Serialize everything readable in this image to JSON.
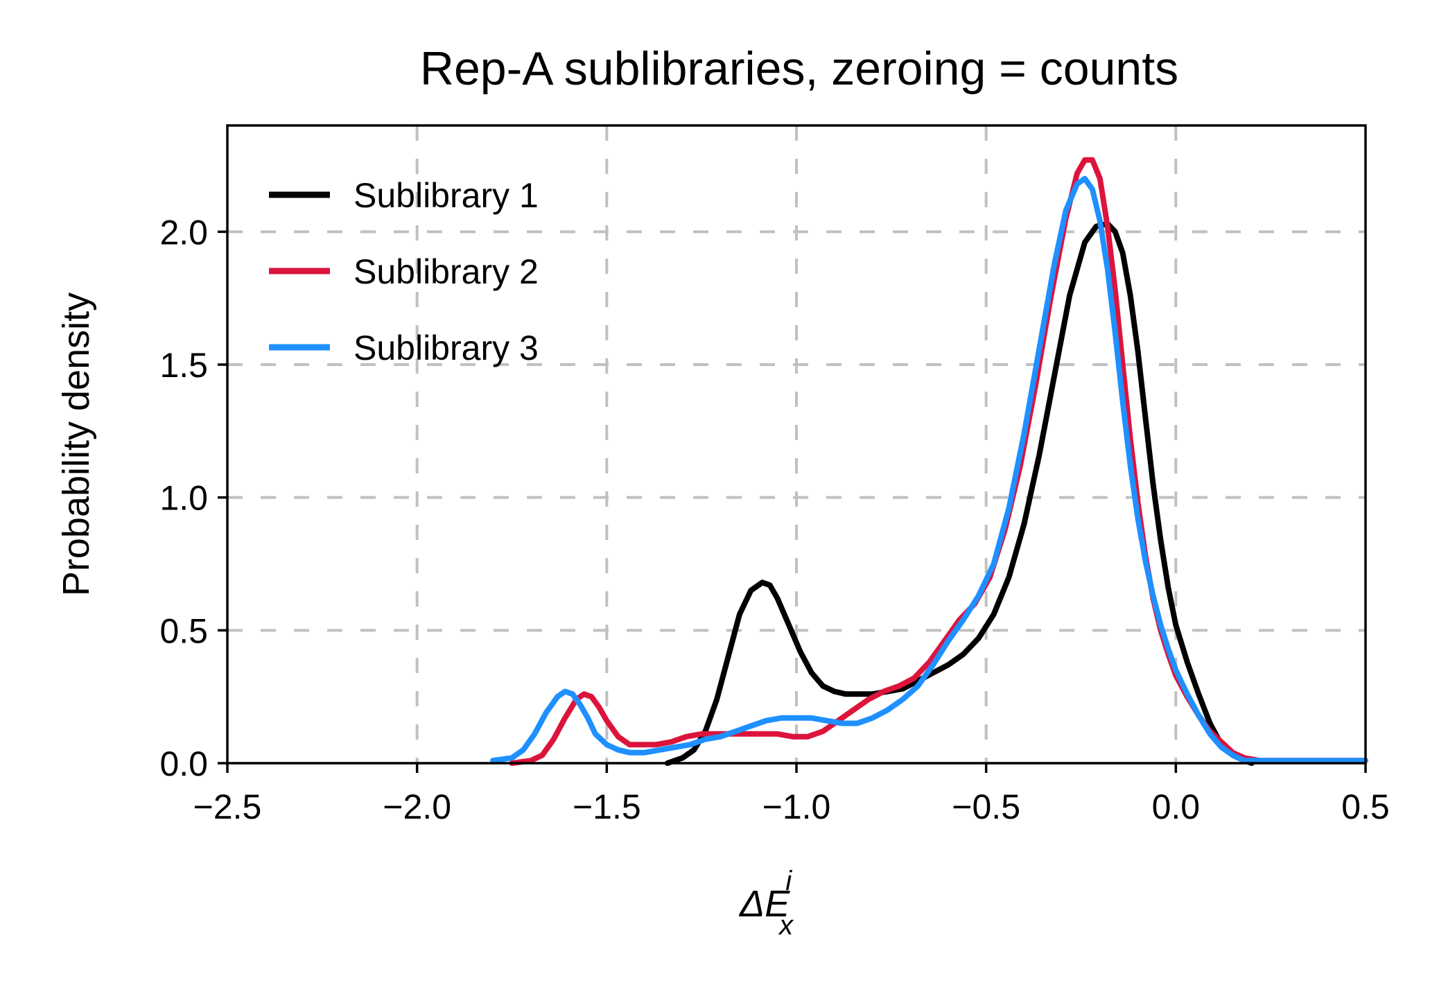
{
  "chart_data": {
    "type": "line",
    "title": "Rep-A sublibraries, zeroing = counts",
    "xlabel": {
      "base": "ΔE",
      "sup": "i",
      "sub": "x"
    },
    "ylabel": "Probability density",
    "xlim": [
      -2.5,
      0.5
    ],
    "ylim": [
      0,
      2.4
    ],
    "xticks": [
      -2.5,
      -2.0,
      -1.5,
      -1.0,
      -0.5,
      0.0,
      0.5
    ],
    "xtick_labels": [
      "−2.5",
      "−2.0",
      "−1.5",
      "−1.0",
      "−0.5",
      "0.0",
      "0.5"
    ],
    "yticks": [
      0.0,
      0.5,
      1.0,
      1.5,
      2.0
    ],
    "ytick_labels": [
      "0.0",
      "0.5",
      "1.0",
      "1.5",
      "2.0"
    ],
    "grid": true,
    "legend_position": "top-left",
    "series": [
      {
        "name": "Sublibrary 1",
        "color": "#000000",
        "x": [
          -1.34,
          -1.3,
          -1.27,
          -1.24,
          -1.21,
          -1.18,
          -1.15,
          -1.12,
          -1.09,
          -1.07,
          -1.05,
          -1.02,
          -0.99,
          -0.96,
          -0.93,
          -0.9,
          -0.87,
          -0.84,
          -0.8,
          -0.76,
          -0.72,
          -0.68,
          -0.64,
          -0.6,
          -0.56,
          -0.52,
          -0.48,
          -0.44,
          -0.4,
          -0.36,
          -0.32,
          -0.28,
          -0.24,
          -0.21,
          -0.18,
          -0.16,
          -0.14,
          -0.12,
          -0.1,
          -0.08,
          -0.06,
          -0.04,
          -0.02,
          0.0,
          0.03,
          0.06,
          0.09,
          0.12,
          0.15,
          0.18,
          0.2
        ],
        "y": [
          0.0,
          0.02,
          0.05,
          0.12,
          0.24,
          0.4,
          0.56,
          0.65,
          0.68,
          0.67,
          0.62,
          0.52,
          0.42,
          0.34,
          0.29,
          0.27,
          0.26,
          0.26,
          0.26,
          0.27,
          0.28,
          0.31,
          0.34,
          0.37,
          0.41,
          0.47,
          0.56,
          0.7,
          0.9,
          1.16,
          1.46,
          1.76,
          1.96,
          2.02,
          2.03,
          2.0,
          1.92,
          1.76,
          1.55,
          1.3,
          1.05,
          0.84,
          0.66,
          0.52,
          0.38,
          0.26,
          0.15,
          0.07,
          0.03,
          0.01,
          0.0
        ]
      },
      {
        "name": "Sublibrary 2",
        "color": "#dc143c",
        "x": [
          -1.75,
          -1.7,
          -1.67,
          -1.64,
          -1.61,
          -1.58,
          -1.56,
          -1.54,
          -1.52,
          -1.5,
          -1.47,
          -1.44,
          -1.41,
          -1.37,
          -1.33,
          -1.29,
          -1.25,
          -1.21,
          -1.17,
          -1.13,
          -1.09,
          -1.05,
          -1.01,
          -0.97,
          -0.93,
          -0.89,
          -0.85,
          -0.81,
          -0.77,
          -0.73,
          -0.69,
          -0.65,
          -0.61,
          -0.57,
          -0.53,
          -0.49,
          -0.45,
          -0.41,
          -0.37,
          -0.33,
          -0.29,
          -0.26,
          -0.24,
          -0.22,
          -0.2,
          -0.18,
          -0.16,
          -0.14,
          -0.12,
          -0.1,
          -0.08,
          -0.06,
          -0.04,
          -0.02,
          0.0,
          0.03,
          0.06,
          0.09,
          0.12,
          0.15,
          0.18,
          0.22,
          0.26,
          0.3,
          0.35,
          0.4,
          0.45,
          0.5
        ],
        "y": [
          0.0,
          0.01,
          0.03,
          0.09,
          0.17,
          0.24,
          0.26,
          0.25,
          0.21,
          0.16,
          0.1,
          0.07,
          0.07,
          0.07,
          0.08,
          0.1,
          0.11,
          0.11,
          0.11,
          0.11,
          0.11,
          0.11,
          0.1,
          0.1,
          0.12,
          0.16,
          0.2,
          0.24,
          0.27,
          0.29,
          0.32,
          0.38,
          0.46,
          0.54,
          0.6,
          0.7,
          0.88,
          1.12,
          1.42,
          1.75,
          2.05,
          2.22,
          2.27,
          2.27,
          2.2,
          2.02,
          1.78,
          1.5,
          1.22,
          0.98,
          0.78,
          0.62,
          0.5,
          0.41,
          0.33,
          0.25,
          0.18,
          0.12,
          0.08,
          0.04,
          0.02,
          0.01,
          0.01,
          0.01,
          0.01,
          0.01,
          0.01,
          0.01
        ]
      },
      {
        "name": "Sublibrary 3",
        "color": "#1e90ff",
        "x": [
          -1.8,
          -1.75,
          -1.72,
          -1.69,
          -1.66,
          -1.63,
          -1.61,
          -1.59,
          -1.57,
          -1.55,
          -1.53,
          -1.5,
          -1.47,
          -1.44,
          -1.4,
          -1.36,
          -1.32,
          -1.28,
          -1.24,
          -1.2,
          -1.16,
          -1.12,
          -1.08,
          -1.04,
          -1.0,
          -0.96,
          -0.92,
          -0.88,
          -0.84,
          -0.8,
          -0.76,
          -0.72,
          -0.68,
          -0.64,
          -0.6,
          -0.56,
          -0.52,
          -0.48,
          -0.44,
          -0.4,
          -0.36,
          -0.32,
          -0.29,
          -0.26,
          -0.24,
          -0.22,
          -0.2,
          -0.18,
          -0.16,
          -0.14,
          -0.12,
          -0.1,
          -0.08,
          -0.06,
          -0.04,
          -0.02,
          0.0,
          0.03,
          0.06,
          0.09,
          0.12,
          0.15,
          0.18,
          0.22,
          0.26,
          0.3,
          0.34,
          0.38,
          0.42,
          0.46,
          0.5
        ],
        "y": [
          0.01,
          0.02,
          0.05,
          0.11,
          0.19,
          0.25,
          0.27,
          0.26,
          0.22,
          0.17,
          0.11,
          0.07,
          0.05,
          0.04,
          0.04,
          0.05,
          0.06,
          0.07,
          0.09,
          0.1,
          0.12,
          0.14,
          0.16,
          0.17,
          0.17,
          0.17,
          0.16,
          0.15,
          0.15,
          0.17,
          0.2,
          0.24,
          0.29,
          0.37,
          0.46,
          0.54,
          0.63,
          0.75,
          0.96,
          1.24,
          1.56,
          1.88,
          2.08,
          2.18,
          2.2,
          2.16,
          2.04,
          1.86,
          1.62,
          1.36,
          1.12,
          0.92,
          0.76,
          0.63,
          0.52,
          0.43,
          0.35,
          0.26,
          0.18,
          0.11,
          0.06,
          0.03,
          0.01,
          0.01,
          0.01,
          0.01,
          0.01,
          0.01,
          0.01,
          0.01,
          0.01
        ]
      }
    ]
  }
}
